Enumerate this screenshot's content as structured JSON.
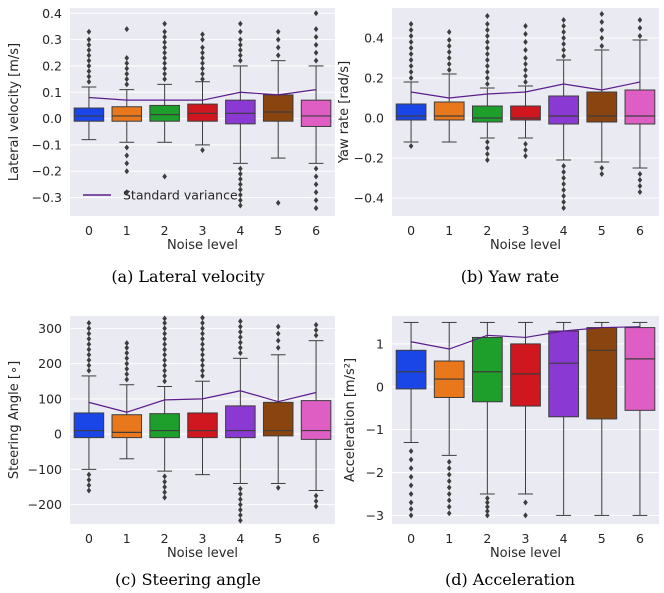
{
  "palette": [
    "#1a46e8",
    "#e8781b",
    "#1e9e2a",
    "#d0161e",
    "#8a3ad2",
    "#8a4410",
    "#df5ec3"
  ],
  "line_color": "#5b1c8c",
  "chart_data": [
    {
      "type": "box",
      "caption": "(a) Lateral velocity",
      "xlabel": "Noise level",
      "ylabel": "Lateral velocity [m/s]",
      "categories": [
        "0",
        "1",
        "2",
        "3",
        "4",
        "5",
        "6"
      ],
      "ylim": [
        -0.37,
        0.42
      ],
      "yticks": [
        -0.3,
        -0.2,
        -0.1,
        0.0,
        0.1,
        0.2,
        0.3,
        0.4
      ],
      "ytick_labels": [
        "−0.3",
        "−0.2",
        "−0.1",
        "0.0",
        "0.1",
        "0.2",
        "0.3",
        "0.4"
      ],
      "legend": {
        "label": "Standard variance",
        "loc": "lower-left"
      },
      "boxes": [
        {
          "q1": -0.01,
          "median": 0.01,
          "q3": 0.04,
          "wlo": -0.08,
          "whi": 0.12,
          "fliers": [
            0.14,
            0.16,
            0.18,
            0.2,
            0.22,
            0.24,
            0.26,
            0.28,
            0.3,
            0.33
          ]
        },
        {
          "q1": -0.01,
          "median": 0.01,
          "q3": 0.045,
          "wlo": -0.09,
          "whi": 0.11,
          "fliers": [
            0.13,
            0.15,
            0.17,
            0.19,
            0.21,
            0.23,
            0.34,
            -0.11,
            -0.14,
            -0.17,
            -0.2,
            -0.28
          ]
        },
        {
          "q1": -0.01,
          "median": 0.015,
          "q3": 0.05,
          "wlo": -0.09,
          "whi": 0.13,
          "fliers": [
            0.15,
            0.17,
            0.19,
            0.21,
            0.23,
            0.25,
            0.27,
            0.29,
            0.31,
            0.33,
            0.36,
            -0.22
          ]
        },
        {
          "q1": -0.01,
          "median": 0.02,
          "q3": 0.055,
          "wlo": -0.1,
          "whi": 0.14,
          "fliers": [
            0.15,
            0.17,
            0.19,
            0.21,
            0.23,
            0.25,
            0.27,
            0.3,
            0.32,
            -0.12
          ]
        },
        {
          "q1": -0.02,
          "median": 0.02,
          "q3": 0.07,
          "wlo": -0.17,
          "whi": 0.2,
          "fliers": [
            0.22,
            0.24,
            0.26,
            0.28,
            0.3,
            0.33,
            0.36,
            -0.19,
            -0.21,
            -0.23,
            -0.25,
            -0.27,
            -0.29,
            -0.31,
            -0.33
          ]
        },
        {
          "q1": -0.01,
          "median": 0.025,
          "q3": 0.09,
          "wlo": -0.15,
          "whi": 0.22,
          "fliers": [
            0.24,
            0.27,
            0.3,
            0.33,
            -0.32
          ]
        },
        {
          "q1": -0.03,
          "median": 0.01,
          "q3": 0.07,
          "wlo": -0.17,
          "whi": 0.2,
          "fliers": [
            0.22,
            0.25,
            0.28,
            0.31,
            0.34,
            0.4,
            -0.19,
            -0.22,
            -0.25,
            -0.28,
            -0.31,
            -0.34
          ]
        }
      ],
      "series": [
        {
          "name": "Standard variance",
          "values": [
            0.08,
            0.07,
            0.07,
            0.07,
            0.1,
            0.09,
            0.11
          ]
        }
      ]
    },
    {
      "type": "box",
      "caption": "(b) Yaw rate",
      "xlabel": "Noise level",
      "ylabel": "Yaw rate [rad/s]",
      "categories": [
        "0",
        "1",
        "2",
        "3",
        "4",
        "5",
        "6"
      ],
      "ylim": [
        -0.49,
        0.55
      ],
      "yticks": [
        -0.4,
        -0.2,
        0.0,
        0.2,
        0.4
      ],
      "ytick_labels": [
        "−0.4",
        "−0.2",
        "0.0",
        "0.2",
        "0.4"
      ],
      "boxes": [
        {
          "q1": -0.01,
          "median": 0.01,
          "q3": 0.07,
          "wlo": -0.12,
          "whi": 0.18,
          "fliers": [
            0.2,
            0.23,
            0.26,
            0.29,
            0.32,
            0.35,
            0.38,
            0.41,
            0.44,
            0.47,
            -0.14
          ]
        },
        {
          "q1": -0.01,
          "median": 0.01,
          "q3": 0.08,
          "wlo": -0.12,
          "whi": 0.22,
          "fliers": [
            0.24,
            0.27,
            0.3,
            0.33,
            0.36,
            0.39,
            0.43
          ]
        },
        {
          "q1": -0.02,
          "median": 0.0,
          "q3": 0.06,
          "wlo": -0.1,
          "whi": 0.15,
          "fliers": [
            0.17,
            0.2,
            0.23,
            0.26,
            0.29,
            0.32,
            0.35,
            0.38,
            0.41,
            0.44,
            0.47,
            0.51,
            -0.12,
            -0.15,
            -0.18,
            -0.21
          ]
        },
        {
          "q1": -0.01,
          "median": 0.0,
          "q3": 0.06,
          "wlo": -0.1,
          "whi": 0.16,
          "fliers": [
            0.18,
            0.21,
            0.24,
            0.27,
            0.3,
            0.34,
            0.38,
            0.42,
            0.46,
            -0.13,
            -0.16,
            -0.19
          ]
        },
        {
          "q1": -0.03,
          "median": 0.01,
          "q3": 0.11,
          "wlo": -0.21,
          "whi": 0.29,
          "fliers": [
            0.31,
            0.34,
            0.37,
            0.4,
            0.43,
            0.46,
            0.49,
            -0.24,
            -0.27,
            -0.3,
            -0.33,
            -0.36,
            -0.39,
            -0.42,
            -0.45
          ]
        },
        {
          "q1": -0.02,
          "median": 0.01,
          "q3": 0.13,
          "wlo": -0.22,
          "whi": 0.34,
          "fliers": [
            0.36,
            0.4,
            0.44,
            0.48,
            0.52,
            -0.25,
            -0.28
          ]
        },
        {
          "q1": -0.03,
          "median": 0.01,
          "q3": 0.14,
          "wlo": -0.25,
          "whi": 0.39,
          "fliers": [
            0.41,
            0.45,
            0.49,
            -0.28,
            -0.31,
            -0.34,
            -0.37
          ]
        }
      ],
      "series": [
        {
          "values": [
            0.13,
            0.1,
            0.12,
            0.13,
            0.17,
            0.14,
            0.18
          ]
        }
      ]
    },
    {
      "type": "box",
      "caption": "(c) Steering angle",
      "xlabel": "Noise level",
      "ylabel": "Steering Angle [∘]",
      "categories": [
        "0",
        "1",
        "2",
        "3",
        "4",
        "5",
        "6"
      ],
      "ylim": [
        -255,
        335
      ],
      "yticks": [
        -200,
        -100,
        0,
        100,
        200,
        300
      ],
      "ytick_labels": [
        "−200",
        "−100",
        "0",
        "100",
        "200",
        "300"
      ],
      "boxes": [
        {
          "q1": -10,
          "median": 10,
          "q3": 60,
          "wlo": -100,
          "whi": 165,
          "fliers": [
            180,
            195,
            210,
            225,
            240,
            255,
            270,
            285,
            300,
            315,
            -115,
            -130,
            -145,
            -160
          ]
        },
        {
          "q1": -10,
          "median": 5,
          "q3": 55,
          "wlo": -70,
          "whi": 140,
          "fliers": [
            155,
            170,
            185,
            200,
            215,
            230,
            245,
            258
          ]
        },
        {
          "q1": -10,
          "median": 10,
          "q3": 58,
          "wlo": -105,
          "whi": 135,
          "fliers": [
            150,
            165,
            180,
            195,
            210,
            225,
            240,
            255,
            270,
            285,
            300,
            315,
            328,
            -120,
            -135,
            -150,
            -165,
            -180
          ]
        },
        {
          "q1": -10,
          "median": 10,
          "q3": 60,
          "wlo": -115,
          "whi": 150,
          "fliers": [
            165,
            180,
            195,
            210,
            225,
            240,
            255,
            270,
            285,
            300,
            315,
            330
          ]
        },
        {
          "q1": -10,
          "median": 10,
          "q3": 80,
          "wlo": -140,
          "whi": 215,
          "fliers": [
            230,
            245,
            260,
            275,
            290,
            305,
            320,
            -155,
            -170,
            -185,
            -200,
            -215,
            -230,
            -245
          ]
        },
        {
          "q1": -5,
          "median": 10,
          "q3": 90,
          "wlo": -140,
          "whi": 225,
          "fliers": [
            245,
            265,
            285,
            305,
            -152
          ]
        },
        {
          "q1": -15,
          "median": 10,
          "q3": 95,
          "wlo": -160,
          "whi": 265,
          "fliers": [
            280,
            295,
            310,
            -175,
            -190,
            -205
          ]
        }
      ],
      "series": [
        {
          "values": [
            90,
            62,
            97,
            100,
            123,
            92,
            118
          ]
        }
      ]
    },
    {
      "type": "box",
      "caption": "(d) Acceleration",
      "xlabel": "Noise level",
      "ylabel": "Acceleration [m/s²]",
      "categories": [
        "0",
        "1",
        "2",
        "3",
        "4",
        "5",
        "6"
      ],
      "ylim": [
        -3.2,
        1.65
      ],
      "yticks": [
        -3,
        -2,
        -1,
        0,
        1
      ],
      "ytick_labels": [
        "−3",
        "−2",
        "−1",
        "0",
        "1"
      ],
      "boxes": [
        {
          "q1": -0.05,
          "median": 0.35,
          "q3": 0.85,
          "wlo": -1.3,
          "whi": 1.5,
          "fliers": [
            -1.5,
            -1.7,
            -1.9,
            -2.1,
            -2.3,
            -2.5,
            -2.7,
            -2.85,
            -3.0
          ]
        },
        {
          "q1": -0.25,
          "median": 0.18,
          "q3": 0.6,
          "wlo": -1.6,
          "whi": 1.5,
          "fliers": [
            -1.75,
            -1.9,
            -2.05,
            -2.2,
            -2.35,
            -2.5,
            -2.65,
            -2.8,
            -2.95
          ]
        },
        {
          "q1": -0.35,
          "median": 0.35,
          "q3": 1.15,
          "wlo": -2.5,
          "whi": 1.5,
          "fliers": [
            -2.6,
            -2.7,
            -2.8,
            -2.9,
            -3.0
          ]
        },
        {
          "q1": -0.45,
          "median": 0.3,
          "q3": 1.0,
          "wlo": -2.5,
          "whi": 1.5,
          "fliers": [
            -2.7,
            -3.0
          ]
        },
        {
          "q1": -0.7,
          "median": 0.55,
          "q3": 1.3,
          "wlo": -3.0,
          "whi": 1.5,
          "fliers": []
        },
        {
          "q1": -0.75,
          "median": 0.85,
          "q3": 1.38,
          "wlo": -3.0,
          "whi": 1.5,
          "fliers": []
        },
        {
          "q1": -0.55,
          "median": 0.65,
          "q3": 1.38,
          "wlo": -3.0,
          "whi": 1.5,
          "fliers": []
        }
      ],
      "series": [
        {
          "values": [
            1.05,
            0.88,
            1.2,
            1.15,
            1.3,
            1.38,
            1.4
          ]
        }
      ]
    }
  ]
}
